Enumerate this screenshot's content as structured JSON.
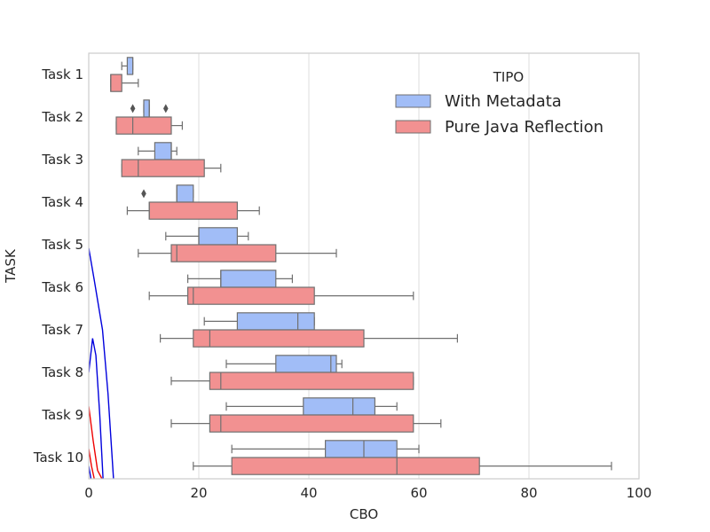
{
  "chart_data": {
    "type": "boxplot-horizontal",
    "title": "",
    "xlabel": "CBO",
    "ylabel": "TASK",
    "xlim": [
      0,
      100
    ],
    "xticks": [
      0,
      20,
      40,
      60,
      80,
      100
    ],
    "xtick_labels": [
      "0",
      "20",
      "40",
      "60",
      "80",
      "100"
    ],
    "grid": "vertical",
    "categories": [
      "Task 1",
      "Task 2",
      "Task 3",
      "Task 4",
      "Task 5",
      "Task 6",
      "Task 7",
      "Task 8",
      "Task 9",
      "Task 10"
    ],
    "legend": {
      "title": "TIPO",
      "placement": "top-right"
    },
    "series": [
      {
        "name": "With Metadata",
        "color": "#a1bdf7",
        "stats": [
          {
            "whislo": 6,
            "q1": 7,
            "med": 8,
            "q3": 8,
            "whishi": 8,
            "fliers": []
          },
          {
            "whislo": 10,
            "q1": 10,
            "med": 11,
            "q3": 11,
            "whishi": 11,
            "fliers": [
              8,
              14
            ]
          },
          {
            "whislo": 9,
            "q1": 12,
            "med": 15,
            "q3": 15,
            "whishi": 16,
            "fliers": []
          },
          {
            "whislo": 16,
            "q1": 16,
            "med": 16,
            "q3": 19,
            "whishi": 19,
            "fliers": [
              10
            ]
          },
          {
            "whislo": 14,
            "q1": 20,
            "med": 20,
            "q3": 27,
            "whishi": 29,
            "fliers": []
          },
          {
            "whislo": 18,
            "q1": 24,
            "med": 24,
            "q3": 34,
            "whishi": 37,
            "fliers": []
          },
          {
            "whislo": 21,
            "q1": 27,
            "med": 38,
            "q3": 41,
            "whishi": 41,
            "fliers": []
          },
          {
            "whislo": 25,
            "q1": 34,
            "med": 44,
            "q3": 45,
            "whishi": 46,
            "fliers": []
          },
          {
            "whislo": 25,
            "q1": 39,
            "med": 48,
            "q3": 52,
            "whishi": 56,
            "fliers": []
          },
          {
            "whislo": 26,
            "q1": 43,
            "med": 50,
            "q3": 56,
            "whishi": 60,
            "fliers": []
          }
        ]
      },
      {
        "name": "Pure Java Reflection",
        "color": "#f29191",
        "stats": [
          {
            "whislo": 4,
            "q1": 4,
            "med": 4,
            "q3": 6,
            "whishi": 9,
            "fliers": []
          },
          {
            "whislo": 5,
            "q1": 5,
            "med": 8,
            "q3": 15,
            "whishi": 17,
            "fliers": []
          },
          {
            "whislo": 6,
            "q1": 6,
            "med": 9,
            "q3": 21,
            "whishi": 24,
            "fliers": []
          },
          {
            "whislo": 7,
            "q1": 11,
            "med": 11,
            "q3": 27,
            "whishi": 31,
            "fliers": []
          },
          {
            "whislo": 9,
            "q1": 15,
            "med": 16,
            "q3": 34,
            "whishi": 45,
            "fliers": []
          },
          {
            "whislo": 11,
            "q1": 18,
            "med": 19,
            "q3": 41,
            "whishi": 59,
            "fliers": []
          },
          {
            "whislo": 13,
            "q1": 19,
            "med": 22,
            "q3": 50,
            "whishi": 67,
            "fliers": []
          },
          {
            "whislo": 15,
            "q1": 22,
            "med": 24,
            "q3": 59,
            "whishi": 59,
            "fliers": []
          },
          {
            "whislo": 15,
            "q1": 22,
            "med": 24,
            "q3": 59,
            "whishi": 64,
            "fliers": []
          },
          {
            "whislo": 19,
            "q1": 26,
            "med": 56,
            "q3": 71,
            "whishi": 95,
            "fliers": []
          }
        ]
      }
    ],
    "overlay_lines": [
      {
        "color": "#0000dd",
        "points": [
          [
            0,
            4.08
          ],
          [
            1,
            4.83
          ],
          [
            2.5,
            6.0
          ],
          [
            3.5,
            7.5
          ],
          [
            4.5,
            9.5
          ]
        ]
      },
      {
        "color": "#0000dd",
        "points": [
          [
            0,
            7.0
          ],
          [
            0.7,
            6.2
          ],
          [
            1.3,
            6.6
          ],
          [
            2.0,
            8.0
          ],
          [
            2.6,
            9.5
          ]
        ]
      },
      {
        "color": "#ee0000",
        "points": [
          [
            0,
            7.8
          ],
          [
            0.8,
            8.6
          ],
          [
            1.6,
            9.3
          ],
          [
            2.4,
            9.5
          ]
        ]
      },
      {
        "color": "#ee0000",
        "points": [
          [
            0,
            8.8
          ],
          [
            0.5,
            9.2
          ],
          [
            1.0,
            9.5
          ]
        ]
      },
      {
        "color": "#0000dd",
        "points": [
          [
            0,
            9.2
          ],
          [
            0.4,
            9.5
          ]
        ]
      }
    ],
    "style": {
      "box_edge": "#707070",
      "grid_color": "#dcdcdc",
      "frame_color": "#cccccc"
    }
  }
}
